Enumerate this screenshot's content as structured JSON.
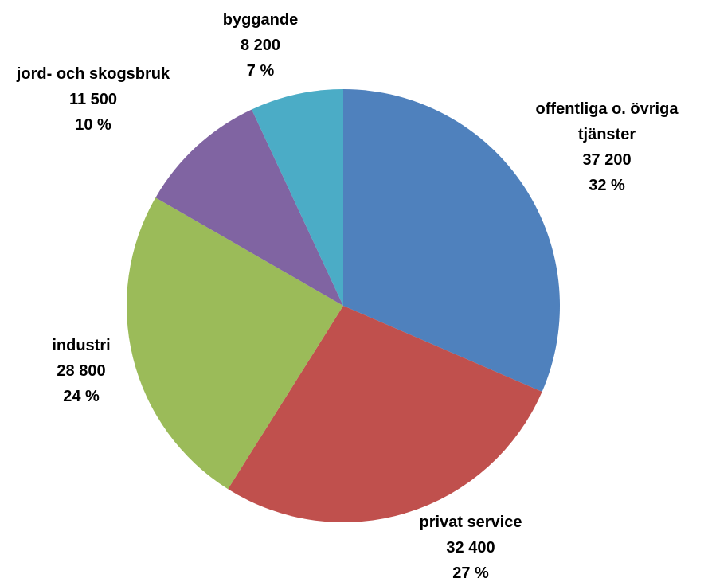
{
  "chart_data": {
    "type": "pie",
    "start_angle_deg": 0,
    "direction": "clockwise",
    "slices": [
      {
        "label": "offentliga o. övriga tjänster",
        "label_lines": [
          "offentliga o. övriga",
          "tjänster"
        ],
        "value": 37200,
        "value_text": "37 200",
        "percent_text": "32 %",
        "color": "#4F81BD"
      },
      {
        "label": "privat service",
        "label_lines": [
          "privat service"
        ],
        "value": 32400,
        "value_text": "32 400",
        "percent_text": "27 %",
        "color": "#C0504D"
      },
      {
        "label": "industri",
        "label_lines": [
          "industri"
        ],
        "value": 28800,
        "value_text": "28 800",
        "percent_text": "24 %",
        "color": "#9BBB59"
      },
      {
        "label": "jord- och skogsbruk",
        "label_lines": [
          "jord- och skogsbruk"
        ],
        "value": 11500,
        "value_text": "11 500",
        "percent_text": "10 %",
        "color": "#8064A2"
      },
      {
        "label": "byggande",
        "label_lines": [
          "byggande"
        ],
        "value": 8200,
        "value_text": "8 200",
        "percent_text": "7 %",
        "color": "#4BACC6"
      }
    ]
  }
}
